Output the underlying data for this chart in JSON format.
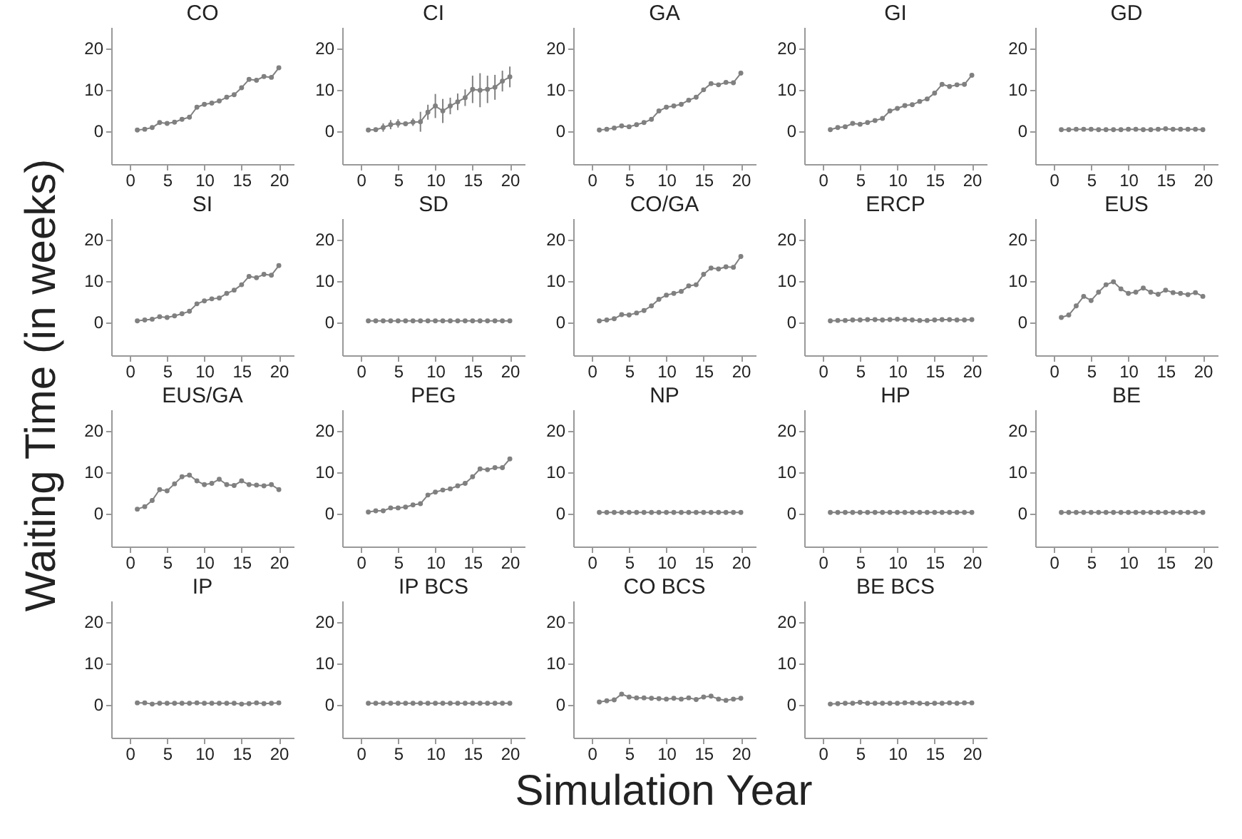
{
  "chart_data": [
    {
      "type": "line",
      "title": "CO",
      "xlabel": "Simulation Year",
      "ylabel": "Waiting Time (in weeks)",
      "x": [
        1,
        2,
        3,
        4,
        5,
        6,
        7,
        8,
        9,
        10,
        11,
        12,
        13,
        14,
        15,
        16,
        17,
        18,
        19,
        20
      ],
      "values": [
        0.2,
        0.4,
        0.8,
        2,
        1.8,
        2.1,
        2.8,
        3.3,
        5.7,
        6.4,
        6.7,
        7.2,
        8.1,
        8.7,
        10.4,
        12.4,
        12.2,
        13.1,
        12.9,
        15.2
      ],
      "color": "#808080",
      "marker": "circle",
      "xlim": [
        -2.5,
        22
      ],
      "ylim": [
        -8,
        25
      ],
      "xticks": [
        0,
        5,
        10,
        15,
        20
      ],
      "yticks": [
        0,
        10,
        20
      ]
    },
    {
      "type": "line",
      "title": "CI",
      "x": [
        1,
        2,
        3,
        4,
        5,
        6,
        7,
        8,
        9,
        10,
        11,
        12,
        13,
        14,
        15,
        16,
        17,
        18,
        19,
        20
      ],
      "values": [
        0.2,
        0.3,
        0.8,
        1.5,
        1.8,
        1.7,
        2.1,
        2.2,
        4.5,
        6,
        4.8,
        6,
        7,
        8,
        10,
        9.8,
        10,
        10.5,
        12,
        13
      ],
      "errors": [
        null,
        null,
        1,
        1.1,
        1,
        null,
        0.9,
        2.4,
        1.8,
        2.9,
        2.9,
        2,
        2,
        2,
        3.3,
        4.1,
        3.3,
        3,
        2.5,
        2.5
      ],
      "color": "#808080",
      "marker": "circle",
      "xlim": [
        -2.5,
        22
      ],
      "ylim": [
        -8,
        25
      ],
      "xticks": [
        0,
        5,
        10,
        15,
        20
      ],
      "yticks": [
        0,
        10,
        20
      ]
    },
    {
      "type": "line",
      "title": "GA",
      "x": [
        1,
        2,
        3,
        4,
        5,
        6,
        7,
        8,
        9,
        10,
        11,
        12,
        13,
        14,
        15,
        16,
        17,
        18,
        19,
        20
      ],
      "values": [
        0.2,
        0.4,
        0.7,
        1.2,
        1,
        1.5,
        2,
        2.8,
        4.8,
        5.7,
        6,
        6.4,
        7.4,
        8.1,
        9.9,
        11.4,
        11.1,
        11.7,
        11.6,
        13.9
      ],
      "color": "#808080",
      "marker": "circle",
      "xlim": [
        -2.5,
        22
      ],
      "ylim": [
        -8,
        25
      ],
      "xticks": [
        0,
        5,
        10,
        15,
        20
      ],
      "yticks": [
        0,
        10,
        20
      ]
    },
    {
      "type": "line",
      "title": "GI",
      "x": [
        1,
        2,
        3,
        4,
        5,
        6,
        7,
        8,
        9,
        10,
        11,
        12,
        13,
        14,
        15,
        16,
        17,
        18,
        19,
        20
      ],
      "values": [
        0.3,
        0.8,
        1,
        1.8,
        1.6,
        2,
        2.5,
        3,
        4.8,
        5.4,
        6.1,
        6.3,
        7.1,
        7.7,
        9.1,
        11.2,
        10.7,
        11.1,
        11.2,
        13.4
      ],
      "color": "#808080",
      "marker": "circle",
      "xlim": [
        -2.5,
        22
      ],
      "ylim": [
        -8,
        25
      ],
      "xticks": [
        0,
        5,
        10,
        15,
        20
      ],
      "yticks": [
        0,
        10,
        20
      ]
    },
    {
      "type": "line",
      "title": "GD",
      "x": [
        1,
        2,
        3,
        4,
        5,
        6,
        7,
        8,
        9,
        10,
        11,
        12,
        13,
        14,
        15,
        16,
        17,
        18,
        19,
        20
      ],
      "values": [
        0.3,
        0.3,
        0.4,
        0.4,
        0.4,
        0.3,
        0.3,
        0.3,
        0.3,
        0.4,
        0.4,
        0.3,
        0.3,
        0.4,
        0.5,
        0.4,
        0.4,
        0.4,
        0.4,
        0.3
      ],
      "color": "#808080",
      "marker": "circle",
      "xlim": [
        -2.5,
        22
      ],
      "ylim": [
        -8,
        25
      ],
      "xticks": [
        0,
        5,
        10,
        15,
        20
      ],
      "yticks": [
        0,
        10,
        20
      ]
    },
    {
      "type": "line",
      "title": "SI",
      "x": [
        1,
        2,
        3,
        4,
        5,
        6,
        7,
        8,
        9,
        10,
        11,
        12,
        13,
        14,
        15,
        16,
        17,
        18,
        19,
        20
      ],
      "values": [
        0.3,
        0.5,
        0.7,
        1.3,
        1.1,
        1.5,
        2,
        2.6,
        4.4,
        5.1,
        5.6,
        5.8,
        6.9,
        7.7,
        9,
        11,
        10.7,
        11.5,
        11.3,
        13.6
      ],
      "color": "#808080",
      "marker": "circle",
      "xlim": [
        -2.5,
        22
      ],
      "ylim": [
        -8,
        25
      ],
      "xticks": [
        0,
        5,
        10,
        15,
        20
      ],
      "yticks": [
        0,
        10,
        20
      ]
    },
    {
      "type": "line",
      "title": "SD",
      "x": [
        1,
        2,
        3,
        4,
        5,
        6,
        7,
        8,
        9,
        10,
        11,
        12,
        13,
        14,
        15,
        16,
        17,
        18,
        19,
        20
      ],
      "values": [
        0.3,
        0.3,
        0.3,
        0.3,
        0.3,
        0.3,
        0.3,
        0.3,
        0.3,
        0.3,
        0.3,
        0.3,
        0.3,
        0.3,
        0.3,
        0.3,
        0.3,
        0.3,
        0.3,
        0.3
      ],
      "color": "#808080",
      "marker": "circle",
      "xlim": [
        -2.5,
        22
      ],
      "ylim": [
        -8,
        25
      ],
      "xticks": [
        0,
        5,
        10,
        15,
        20
      ],
      "yticks": [
        0,
        10,
        20
      ]
    },
    {
      "type": "line",
      "title": "CO/GA",
      "x": [
        1,
        2,
        3,
        4,
        5,
        6,
        7,
        8,
        9,
        10,
        11,
        12,
        13,
        14,
        15,
        16,
        17,
        18,
        19,
        20
      ],
      "values": [
        0.3,
        0.5,
        0.8,
        1.8,
        1.7,
        2.2,
        2.8,
        3.9,
        5.5,
        6.5,
        6.9,
        7.4,
        8.7,
        9,
        11.5,
        13,
        12.8,
        13.3,
        13.2,
        15.8
      ],
      "color": "#808080",
      "marker": "circle",
      "xlim": [
        -2.5,
        22
      ],
      "ylim": [
        -8,
        25
      ],
      "xticks": [
        0,
        5,
        10,
        15,
        20
      ],
      "yticks": [
        0,
        10,
        20
      ]
    },
    {
      "type": "line",
      "title": "ERCP",
      "x": [
        1,
        2,
        3,
        4,
        5,
        6,
        7,
        8,
        9,
        10,
        11,
        12,
        13,
        14,
        15,
        16,
        17,
        18,
        19,
        20
      ],
      "values": [
        0.3,
        0.4,
        0.4,
        0.5,
        0.5,
        0.6,
        0.6,
        0.5,
        0.6,
        0.7,
        0.6,
        0.5,
        0.4,
        0.4,
        0.5,
        0.6,
        0.6,
        0.5,
        0.5,
        0.6
      ],
      "color": "#808080",
      "marker": "circle",
      "xlim": [
        -2.5,
        22
      ],
      "ylim": [
        -8,
        25
      ],
      "xticks": [
        0,
        5,
        10,
        15,
        20
      ],
      "yticks": [
        0,
        10,
        20
      ]
    },
    {
      "type": "line",
      "title": "EUS",
      "x": [
        1,
        2,
        3,
        4,
        5,
        6,
        7,
        8,
        9,
        10,
        11,
        12,
        13,
        14,
        15,
        16,
        17,
        18,
        19,
        20
      ],
      "values": [
        1.1,
        1.7,
        3.9,
        6.2,
        5.2,
        7.2,
        9,
        9.7,
        8,
        6.9,
        7.2,
        8.2,
        7.2,
        6.7,
        7.7,
        7.1,
        6.9,
        6.6,
        7.1,
        6.2
      ],
      "color": "#808080",
      "marker": "circle",
      "xlim": [
        -2.5,
        22
      ],
      "ylim": [
        -8,
        25
      ],
      "xticks": [
        0,
        5,
        10,
        15,
        20
      ],
      "yticks": [
        0,
        10,
        20
      ]
    },
    {
      "type": "line",
      "title": "EUS/GA",
      "x": [
        1,
        2,
        3,
        4,
        5,
        6,
        7,
        8,
        9,
        10,
        11,
        12,
        13,
        14,
        15,
        16,
        17,
        18,
        19,
        20
      ],
      "values": [
        1,
        1.6,
        3.1,
        5.7,
        5.4,
        7.1,
        8.8,
        9.2,
        7.8,
        6.9,
        7.2,
        8.2,
        6.9,
        6.7,
        7.8,
        6.9,
        6.8,
        6.6,
        6.9,
        5.7
      ],
      "color": "#808080",
      "marker": "circle",
      "xlim": [
        -2.5,
        22
      ],
      "ylim": [
        -8,
        25
      ],
      "xticks": [
        0,
        5,
        10,
        15,
        20
      ],
      "yticks": [
        0,
        10,
        20
      ]
    },
    {
      "type": "line",
      "title": "PEG",
      "x": [
        1,
        2,
        3,
        4,
        5,
        6,
        7,
        8,
        9,
        10,
        11,
        12,
        13,
        14,
        15,
        16,
        17,
        18,
        19,
        20
      ],
      "values": [
        0.3,
        0.6,
        0.6,
        1.3,
        1.3,
        1.5,
        2,
        2.3,
        4.4,
        5.1,
        5.6,
        5.9,
        6.6,
        7.2,
        8.8,
        10.7,
        10.5,
        11,
        11,
        13.1
      ],
      "color": "#808080",
      "marker": "circle",
      "xlim": [
        -2.5,
        22
      ],
      "ylim": [
        -8,
        25
      ],
      "xticks": [
        0,
        5,
        10,
        15,
        20
      ],
      "yticks": [
        0,
        10,
        20
      ]
    },
    {
      "type": "line",
      "title": "NP",
      "x": [
        1,
        2,
        3,
        4,
        5,
        6,
        7,
        8,
        9,
        10,
        11,
        12,
        13,
        14,
        15,
        16,
        17,
        18,
        19,
        20
      ],
      "values": [
        0.2,
        0.2,
        0.2,
        0.2,
        0.2,
        0.2,
        0.2,
        0.2,
        0.2,
        0.2,
        0.2,
        0.2,
        0.2,
        0.2,
        0.2,
        0.2,
        0.2,
        0.2,
        0.2,
        0.2
      ],
      "color": "#808080",
      "marker": "circle",
      "xlim": [
        -2.5,
        22
      ],
      "ylim": [
        -8,
        25
      ],
      "xticks": [
        0,
        5,
        10,
        15,
        20
      ],
      "yticks": [
        0,
        10,
        20
      ]
    },
    {
      "type": "line",
      "title": "HP",
      "x": [
        1,
        2,
        3,
        4,
        5,
        6,
        7,
        8,
        9,
        10,
        11,
        12,
        13,
        14,
        15,
        16,
        17,
        18,
        19,
        20
      ],
      "values": [
        0.2,
        0.2,
        0.2,
        0.2,
        0.2,
        0.2,
        0.2,
        0.2,
        0.2,
        0.2,
        0.2,
        0.2,
        0.2,
        0.2,
        0.2,
        0.2,
        0.2,
        0.2,
        0.2,
        0.2
      ],
      "color": "#808080",
      "marker": "circle",
      "xlim": [
        -2.5,
        22
      ],
      "ylim": [
        -8,
        25
      ],
      "xticks": [
        0,
        5,
        10,
        15,
        20
      ],
      "yticks": [
        0,
        10,
        20
      ]
    },
    {
      "type": "line",
      "title": "BE",
      "x": [
        1,
        2,
        3,
        4,
        5,
        6,
        7,
        8,
        9,
        10,
        11,
        12,
        13,
        14,
        15,
        16,
        17,
        18,
        19,
        20
      ],
      "values": [
        0.2,
        0.2,
        0.2,
        0.2,
        0.2,
        0.2,
        0.2,
        0.2,
        0.2,
        0.2,
        0.2,
        0.2,
        0.2,
        0.2,
        0.2,
        0.2,
        0.2,
        0.2,
        0.2,
        0.2
      ],
      "color": "#808080",
      "marker": "circle",
      "xlim": [
        -2.5,
        22
      ],
      "ylim": [
        -8,
        25
      ],
      "xticks": [
        0,
        5,
        10,
        15,
        20
      ],
      "yticks": [
        0,
        10,
        20
      ]
    },
    {
      "type": "line",
      "title": "IP",
      "x": [
        1,
        2,
        3,
        4,
        5,
        6,
        7,
        8,
        9,
        10,
        11,
        12,
        13,
        14,
        15,
        16,
        17,
        18,
        19,
        20
      ],
      "values": [
        0.4,
        0.4,
        0.1,
        0.3,
        0.3,
        0.3,
        0.3,
        0.3,
        0.4,
        0.3,
        0.3,
        0.3,
        0.3,
        0.3,
        0.1,
        0.2,
        0.4,
        0.2,
        0.3,
        0.4
      ],
      "color": "#808080",
      "marker": "circle",
      "xlim": [
        -2.5,
        22
      ],
      "ylim": [
        -8,
        25
      ],
      "xticks": [
        0,
        5,
        10,
        15,
        20
      ],
      "yticks": [
        0,
        10,
        20
      ]
    },
    {
      "type": "line",
      "title": "IP BCS",
      "x": [
        1,
        2,
        3,
        4,
        5,
        6,
        7,
        8,
        9,
        10,
        11,
        12,
        13,
        14,
        15,
        16,
        17,
        18,
        19,
        20
      ],
      "values": [
        0.3,
        0.3,
        0.3,
        0.3,
        0.3,
        0.3,
        0.3,
        0.3,
        0.3,
        0.3,
        0.3,
        0.3,
        0.3,
        0.3,
        0.3,
        0.3,
        0.3,
        0.3,
        0.3,
        0.3
      ],
      "color": "#808080",
      "marker": "circle",
      "xlim": [
        -2.5,
        22
      ],
      "ylim": [
        -8,
        25
      ],
      "xticks": [
        0,
        5,
        10,
        15,
        20
      ],
      "yticks": [
        0,
        10,
        20
      ]
    },
    {
      "type": "line",
      "title": "CO BCS",
      "x": [
        1,
        2,
        3,
        4,
        5,
        6,
        7,
        8,
        9,
        10,
        11,
        12,
        13,
        14,
        15,
        16,
        17,
        18,
        19,
        20
      ],
      "values": [
        0.6,
        0.9,
        1.1,
        2.5,
        1.8,
        1.6,
        1.6,
        1.5,
        1.4,
        1.3,
        1.5,
        1.3,
        1.6,
        1.2,
        1.8,
        2,
        1.3,
        1,
        1.3,
        1.5
      ],
      "color": "#808080",
      "marker": "circle",
      "xlim": [
        -2.5,
        22
      ],
      "ylim": [
        -8,
        25
      ],
      "xticks": [
        0,
        5,
        10,
        15,
        20
      ],
      "yticks": [
        0,
        10,
        20
      ]
    },
    {
      "type": "line",
      "title": "BE BCS",
      "x": [
        1,
        2,
        3,
        4,
        5,
        6,
        7,
        8,
        9,
        10,
        11,
        12,
        13,
        14,
        15,
        16,
        17,
        18,
        19,
        20
      ],
      "values": [
        0.1,
        0.2,
        0.3,
        0.3,
        0.5,
        0.3,
        0.3,
        0.3,
        0.3,
        0.3,
        0.4,
        0.4,
        0.3,
        0.2,
        0.3,
        0.3,
        0.4,
        0.3,
        0.4,
        0.4
      ],
      "color": "#808080",
      "marker": "circle",
      "xlim": [
        -2.5,
        22
      ],
      "ylim": [
        -8,
        25
      ],
      "xticks": [
        0,
        5,
        10,
        15,
        20
      ],
      "yticks": [
        0,
        10,
        20
      ]
    }
  ]
}
